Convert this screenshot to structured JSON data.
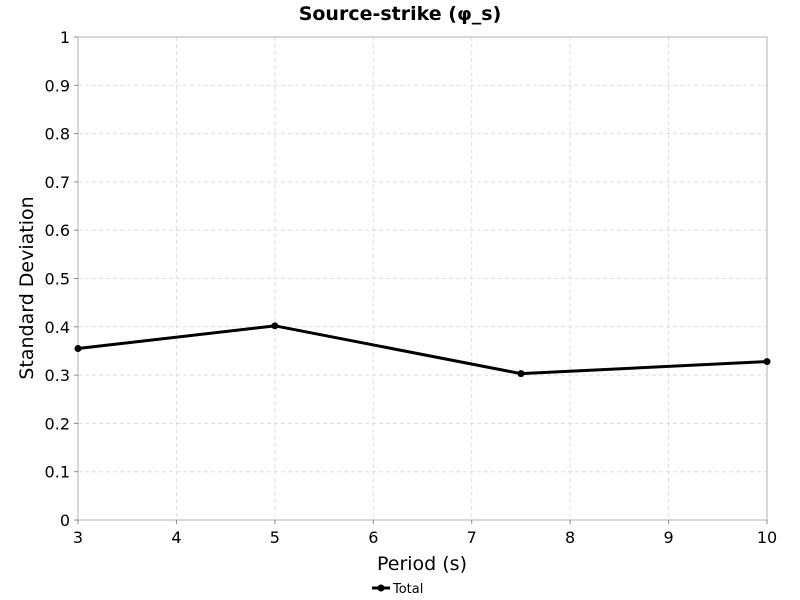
{
  "chart_data": {
    "type": "line",
    "title": "Source-strike (φ_s)",
    "xlabel": "Period (s)",
    "ylabel": "Standard Deviation",
    "xlim": [
      3,
      10
    ],
    "ylim": [
      0,
      1
    ],
    "xticks": [
      "3",
      "4",
      "5",
      "6",
      "7",
      "8",
      "9",
      "10"
    ],
    "yticks": [
      "0",
      "0.1",
      "0.2",
      "0.3",
      "0.4",
      "0.5",
      "0.6",
      "0.7",
      "0.8",
      "0.9",
      "1"
    ],
    "grid": true,
    "legend_position": "bottom-center",
    "series": [
      {
        "name": "Total",
        "color": "#000000",
        "marker": "circle",
        "x": [
          3,
          5,
          7.5,
          10
        ],
        "y": [
          0.355,
          0.402,
          0.303,
          0.328
        ]
      }
    ]
  }
}
